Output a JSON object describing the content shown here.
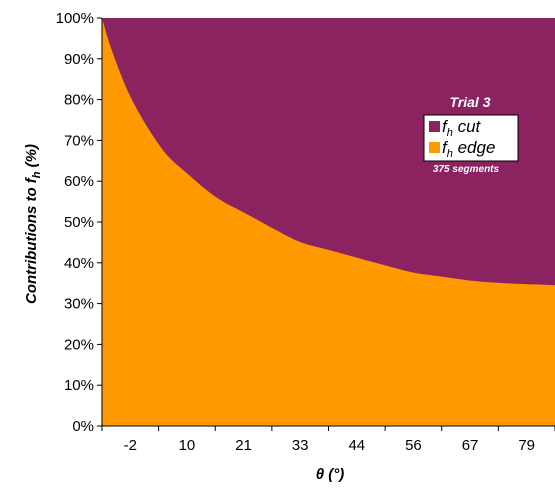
{
  "chart_data": {
    "type": "area",
    "stacked": true,
    "xlabel": {
      "symbol": "θ",
      "unit": "(°)"
    },
    "ylabel": {
      "prefix": "Contributions to ",
      "symbol": "f",
      "subscript": "h",
      "suffix": " (%)"
    },
    "x_ticks": [
      "-2",
      "10",
      "21",
      "33",
      "44",
      "56",
      "67",
      "79"
    ],
    "y_ticks": [
      "0%",
      "10%",
      "20%",
      "30%",
      "40%",
      "50%",
      "60%",
      "70%",
      "80%",
      "90%",
      "100%"
    ],
    "xlim": [
      -2,
      89
    ],
    "ylim": [
      0,
      100
    ],
    "x": [
      -2,
      0,
      4,
      10,
      15,
      21,
      27,
      33,
      38,
      44,
      50,
      56,
      61,
      67,
      73,
      79,
      85,
      89
    ],
    "series": [
      {
        "name": "f_h edge",
        "symbol": "f",
        "subscript": "h",
        "word": "edge",
        "color": "#FF9900",
        "values": [
          100,
          92,
          80,
          68,
          62,
          56,
          52,
          48,
          45,
          43,
          41,
          39,
          37.5,
          36.5,
          35.5,
          35,
          34.7,
          34.5
        ]
      },
      {
        "name": "f_h cut",
        "symbol": "f",
        "subscript": "h",
        "word": "cut",
        "color": "#8B2361",
        "values": [
          0,
          8,
          20,
          32,
          38,
          44,
          48,
          52,
          55,
          57,
          59,
          61,
          62.5,
          63.5,
          64.5,
          65,
          65.3,
          65.5
        ]
      }
    ],
    "legend": {
      "title": "Trial 3",
      "note": "375 segments",
      "position": "top-right",
      "order": [
        "f_h cut",
        "f_h edge"
      ]
    },
    "grid": false
  }
}
